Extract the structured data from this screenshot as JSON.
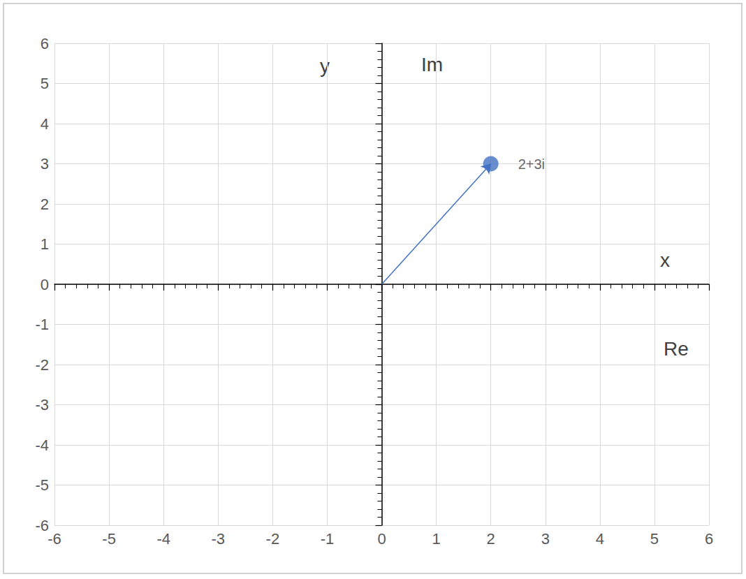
{
  "chart_data": {
    "type": "scatter",
    "xlabel": "x",
    "ylabel": "y",
    "annotations": [
      "Im",
      "Re"
    ],
    "x": [
      2
    ],
    "values": [
      3
    ],
    "value_labels": [
      "2+3i"
    ],
    "color": "#4472c4",
    "marker": "circle",
    "line_style": "arrow",
    "xlim": [
      -6,
      6
    ],
    "xticks": [
      -6,
      -5,
      -4,
      -3,
      -2,
      -1,
      0,
      1,
      2,
      3,
      4,
      5,
      6
    ],
    "ylim": [
      -6,
      6
    ],
    "yticks": [
      -6,
      -5,
      -4,
      -3,
      -2,
      -1,
      0,
      1,
      2,
      3,
      4,
      5,
      6
    ],
    "grid": true
  }
}
